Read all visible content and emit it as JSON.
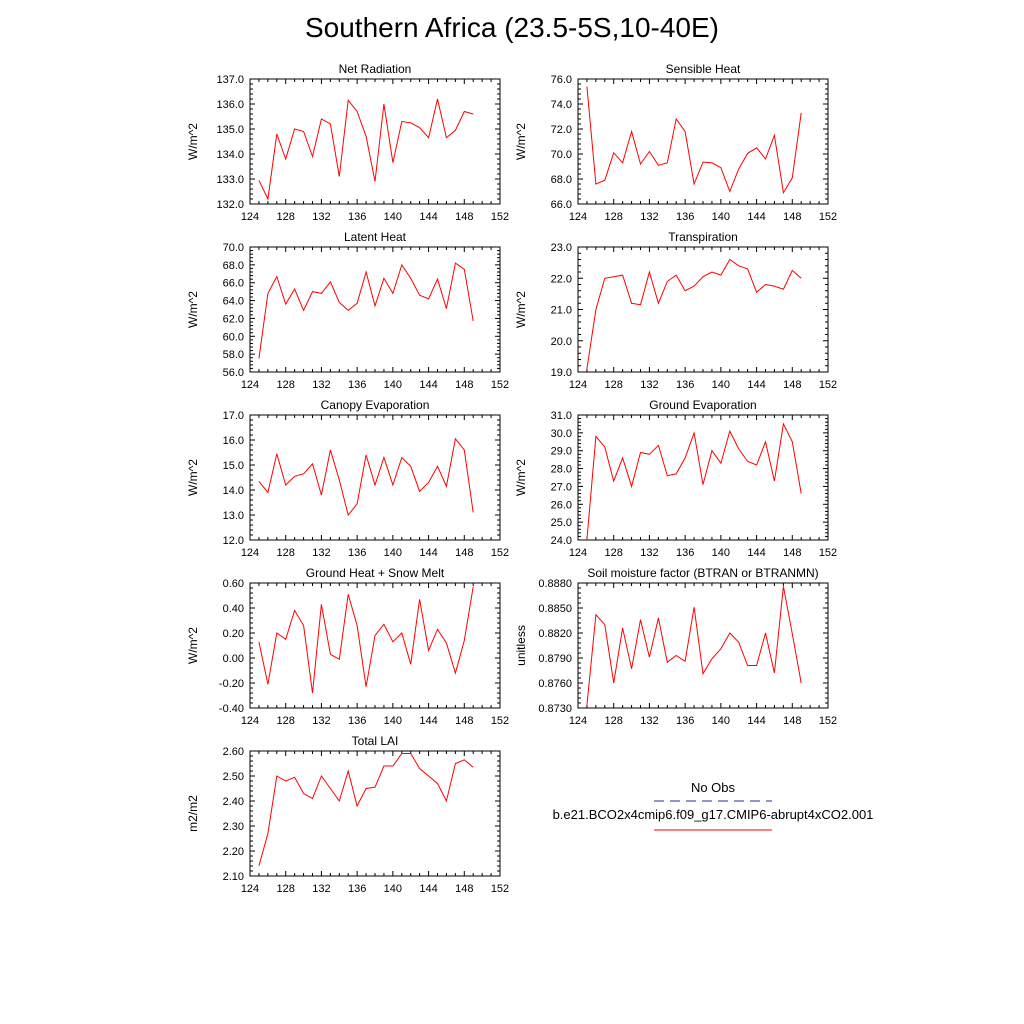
{
  "title": "Southern Africa (23.5-5S,10-40E)",
  "colors": {
    "model": "#ff0000",
    "obs": "#1f2f8f",
    "axis": "#000000"
  },
  "legend": {
    "entries": [
      {
        "label": "No Obs",
        "style": "dashed",
        "color": "#1f2f8f"
      },
      {
        "label": "b.e21.BCO2x4cmip6.f09_g17.CMIP6-abrupt4xCO2.001",
        "style": "solid",
        "color": "#ff0000"
      }
    ]
  },
  "chart_data": [
    {
      "type": "line",
      "title": "Net Radiation",
      "ylabel": "W/m^2",
      "xlim": [
        124,
        152
      ],
      "xticks": [
        124,
        128,
        132,
        136,
        140,
        144,
        148,
        152
      ],
      "ylim": [
        132.0,
        137.0
      ],
      "yticks": [
        "132.0",
        "133.0",
        "134.0",
        "135.0",
        "136.0",
        "137.0"
      ],
      "series": [
        {
          "x": [
            125,
            126,
            127,
            128,
            129,
            130,
            131,
            132,
            133,
            134,
            135,
            136,
            137,
            138,
            139,
            140,
            141,
            142,
            143,
            144,
            145,
            146,
            147,
            148,
            149
          ],
          "values": [
            132.95,
            132.2,
            134.8,
            133.8,
            135.0,
            134.9,
            133.9,
            135.4,
            135.2,
            133.1,
            136.15,
            135.7,
            134.7,
            132.9,
            136.0,
            133.65,
            135.3,
            135.25,
            135.05,
            134.65,
            136.2,
            134.65,
            134.95,
            135.7,
            135.6
          ]
        }
      ]
    },
    {
      "type": "line",
      "title": "Sensible Heat",
      "ylabel": "W/m^2",
      "xlim": [
        124,
        152
      ],
      "xticks": [
        124,
        128,
        132,
        136,
        140,
        144,
        148,
        152
      ],
      "ylim": [
        66.0,
        76.0
      ],
      "yticks": [
        "66.0",
        "68.0",
        "70.0",
        "72.0",
        "74.0",
        "76.0"
      ],
      "series": [
        {
          "x": [
            125,
            126,
            127,
            128,
            129,
            130,
            131,
            132,
            133,
            134,
            135,
            136,
            137,
            138,
            139,
            140,
            141,
            142,
            143,
            144,
            145,
            146,
            147,
            148,
            149
          ],
          "values": [
            75.4,
            67.6,
            67.9,
            70.1,
            69.3,
            71.8,
            69.2,
            70.2,
            69.1,
            69.3,
            72.8,
            71.8,
            67.6,
            69.35,
            69.3,
            68.9,
            67.0,
            68.8,
            70.05,
            70.5,
            69.6,
            71.5,
            66.9,
            68.1,
            73.3
          ]
        }
      ]
    },
    {
      "type": "line",
      "title": "Latent Heat",
      "ylabel": "W/m^2",
      "xlim": [
        124,
        152
      ],
      "xticks": [
        124,
        128,
        132,
        136,
        140,
        144,
        148,
        152
      ],
      "ylim": [
        56.0,
        70.0
      ],
      "yticks": [
        "56.0",
        "58.0",
        "60.0",
        "62.0",
        "64.0",
        "66.0",
        "68.0",
        "70.0"
      ],
      "series": [
        {
          "x": [
            125,
            126,
            127,
            128,
            129,
            130,
            131,
            132,
            133,
            134,
            135,
            136,
            137,
            138,
            139,
            140,
            141,
            142,
            143,
            144,
            145,
            146,
            147,
            148,
            149
          ],
          "values": [
            57.5,
            64.8,
            66.7,
            63.6,
            65.3,
            62.9,
            65.0,
            64.8,
            66.1,
            63.8,
            62.9,
            63.7,
            67.2,
            63.4,
            66.5,
            64.8,
            68.0,
            66.5,
            64.6,
            64.2,
            66.4,
            63.1,
            68.2,
            67.5,
            61.7
          ]
        }
      ]
    },
    {
      "type": "line",
      "title": "Transpiration",
      "ylabel": "W/m^2",
      "xlim": [
        124,
        152
      ],
      "xticks": [
        124,
        128,
        132,
        136,
        140,
        144,
        148,
        152
      ],
      "ylim": [
        19.0,
        23.0
      ],
      "yticks": [
        "19.0",
        "20.0",
        "21.0",
        "22.0",
        "23.0"
      ],
      "series": [
        {
          "x": [
            125,
            126,
            127,
            128,
            129,
            130,
            131,
            132,
            133,
            134,
            135,
            136,
            137,
            138,
            139,
            140,
            141,
            142,
            143,
            144,
            145,
            146,
            147,
            148,
            149
          ],
          "values": [
            19.1,
            21.0,
            22.0,
            22.05,
            22.1,
            21.2,
            21.15,
            22.2,
            21.2,
            21.9,
            22.1,
            21.6,
            21.75,
            22.05,
            22.2,
            22.1,
            22.6,
            22.4,
            22.3,
            21.55,
            21.8,
            21.75,
            21.65,
            22.25,
            22.0
          ]
        }
      ]
    },
    {
      "type": "line",
      "title": "Canopy Evaporation",
      "ylabel": "W/m^2",
      "xlim": [
        124,
        152
      ],
      "xticks": [
        124,
        128,
        132,
        136,
        140,
        144,
        148,
        152
      ],
      "ylim": [
        12.0,
        17.0
      ],
      "yticks": [
        "12.0",
        "13.0",
        "14.0",
        "15.0",
        "16.0",
        "17.0"
      ],
      "series": [
        {
          "x": [
            125,
            126,
            127,
            128,
            129,
            130,
            131,
            132,
            133,
            134,
            135,
            136,
            137,
            138,
            139,
            140,
            141,
            142,
            143,
            144,
            145,
            146,
            147,
            148,
            149
          ],
          "values": [
            14.35,
            13.9,
            15.45,
            14.2,
            14.55,
            14.65,
            15.05,
            13.8,
            15.6,
            14.4,
            13.0,
            13.45,
            15.4,
            14.2,
            15.3,
            14.2,
            15.3,
            14.95,
            13.95,
            14.3,
            14.95,
            14.15,
            16.05,
            15.6,
            13.1
          ]
        }
      ]
    },
    {
      "type": "line",
      "title": "Ground Evaporation",
      "ylabel": "W/m^2",
      "xlim": [
        124,
        152
      ],
      "xticks": [
        124,
        128,
        132,
        136,
        140,
        144,
        148,
        152
      ],
      "ylim": [
        24.0,
        31.0
      ],
      "yticks": [
        "24.0",
        "25.0",
        "26.0",
        "27.0",
        "28.0",
        "29.0",
        "30.0",
        "31.0"
      ],
      "series": [
        {
          "x": [
            125,
            126,
            127,
            128,
            129,
            130,
            131,
            132,
            133,
            134,
            135,
            136,
            137,
            138,
            139,
            140,
            141,
            142,
            143,
            144,
            145,
            146,
            147,
            148,
            149
          ],
          "values": [
            24.0,
            29.8,
            29.2,
            27.3,
            28.6,
            27.0,
            28.9,
            28.8,
            29.3,
            27.6,
            27.7,
            28.6,
            30.0,
            27.1,
            29.0,
            28.3,
            30.1,
            29.1,
            28.4,
            28.2,
            29.5,
            27.3,
            30.5,
            29.5,
            26.6
          ]
        }
      ]
    },
    {
      "type": "line",
      "title": "Ground Heat + Snow Melt",
      "ylabel": "W/m^2",
      "xlim": [
        124,
        152
      ],
      "xticks": [
        124,
        128,
        132,
        136,
        140,
        144,
        148,
        152
      ],
      "ylim": [
        -0.4,
        0.6
      ],
      "yticks": [
        "-0.40",
        "-0.20",
        "0.00",
        "0.20",
        "0.40",
        "0.60"
      ],
      "series": [
        {
          "x": [
            125,
            126,
            127,
            128,
            129,
            130,
            131,
            132,
            133,
            134,
            135,
            136,
            137,
            138,
            139,
            140,
            141,
            142,
            143,
            144,
            145,
            146,
            147,
            148,
            149
          ],
          "values": [
            0.13,
            -0.21,
            0.2,
            0.15,
            0.38,
            0.26,
            -0.28,
            0.43,
            0.03,
            -0.01,
            0.51,
            0.26,
            -0.23,
            0.18,
            0.27,
            0.13,
            0.2,
            -0.05,
            0.47,
            0.06,
            0.23,
            0.12,
            -0.12,
            0.14,
            0.57
          ]
        }
      ]
    },
    {
      "type": "line",
      "title": "Soil moisture factor (BTRAN or BTRANMN)",
      "ylabel": "unitless",
      "xlim": [
        124,
        152
      ],
      "xticks": [
        124,
        128,
        132,
        136,
        140,
        144,
        148,
        152
      ],
      "ylim": [
        0.873,
        0.888
      ],
      "yticks": [
        "0.8730",
        "0.8760",
        "0.8790",
        "0.8820",
        "0.8850",
        "0.8880"
      ],
      "series": [
        {
          "x": [
            125,
            126,
            127,
            128,
            129,
            130,
            131,
            132,
            133,
            134,
            135,
            136,
            137,
            138,
            139,
            140,
            141,
            142,
            143,
            144,
            145,
            146,
            147,
            148,
            149
          ],
          "values": [
            0.8733,
            0.8842,
            0.883,
            0.876,
            0.8826,
            0.8777,
            0.8836,
            0.8791,
            0.8838,
            0.8785,
            0.8793,
            0.8786,
            0.8851,
            0.8771,
            0.8789,
            0.8801,
            0.882,
            0.8809,
            0.8781,
            0.8781,
            0.882,
            0.8772,
            0.8876,
            0.8819,
            0.876
          ]
        }
      ]
    },
    {
      "type": "line",
      "title": "Total LAI",
      "ylabel": "m2/m2",
      "xlim": [
        124,
        152
      ],
      "xticks": [
        124,
        128,
        132,
        136,
        140,
        144,
        148,
        152
      ],
      "ylim": [
        2.1,
        2.6
      ],
      "yticks": [
        "2.10",
        "2.20",
        "2.30",
        "2.40",
        "2.50",
        "2.60"
      ],
      "series": [
        {
          "x": [
            125,
            126,
            127,
            128,
            129,
            130,
            131,
            132,
            133,
            134,
            135,
            136,
            137,
            138,
            139,
            140,
            141,
            142,
            143,
            144,
            145,
            146,
            147,
            148,
            149
          ],
          "values": [
            2.14,
            2.27,
            2.5,
            2.48,
            2.495,
            2.43,
            2.41,
            2.5,
            2.45,
            2.4,
            2.52,
            2.38,
            2.45,
            2.455,
            2.54,
            2.54,
            2.59,
            2.59,
            2.53,
            2.5,
            2.47,
            2.4,
            2.55,
            2.565,
            2.535
          ]
        }
      ]
    }
  ]
}
